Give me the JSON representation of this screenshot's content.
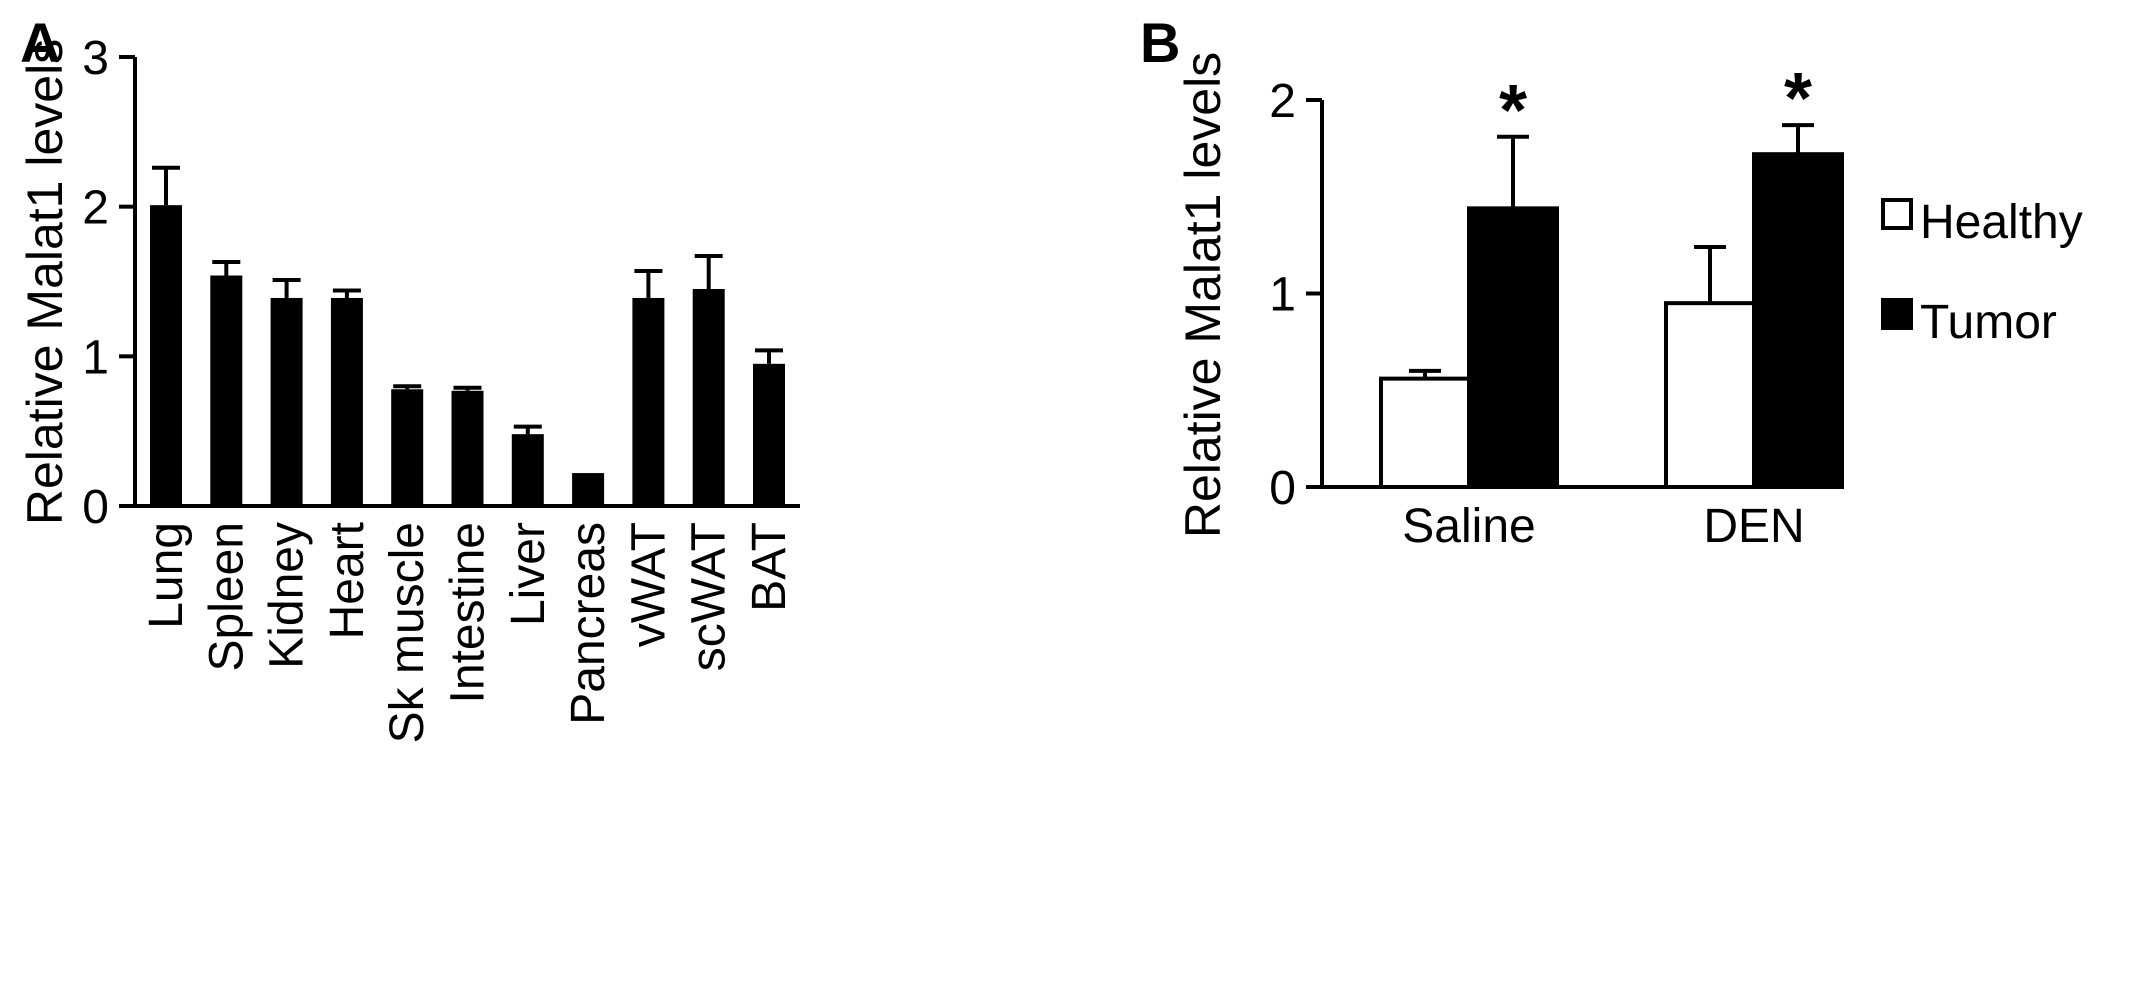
{
  "chart_data": [
    {
      "panel": "A",
      "type": "bar",
      "ylabel": "Relative Malat1 levels",
      "ylim": [
        0,
        3
      ],
      "yticks": [
        "0",
        "1",
        "2",
        "3"
      ],
      "categories": [
        "Lung",
        "Spleen",
        "Kidney",
        "Heart",
        "Sk muscle",
        "Intestine",
        "Liver",
        "Pancreas",
        "vWAT",
        "scWAT",
        "BAT"
      ],
      "values": [
        2.01,
        1.54,
        1.39,
        1.39,
        0.78,
        0.77,
        0.48,
        0.22,
        1.39,
        1.45,
        0.95
      ],
      "errors": [
        0.25,
        0.09,
        0.12,
        0.05,
        0.02,
        0.02,
        0.05,
        0.0,
        0.18,
        0.22,
        0.09
      ],
      "colors": {
        "bar": "#000000"
      }
    },
    {
      "panel": "B",
      "type": "bar",
      "ylabel": "Relative Malat1 levels",
      "ylim": [
        0,
        2
      ],
      "yticks": [
        "0",
        "1",
        "2"
      ],
      "categories": [
        "Saline",
        "DEN"
      ],
      "series": [
        {
          "name": "Healthy",
          "values": [
            0.56,
            0.95
          ],
          "errors": [
            0.04,
            0.29
          ],
          "color": "#ffffff"
        },
        {
          "name": "Tumor",
          "values": [
            1.44,
            1.72
          ],
          "errors": [
            0.37,
            0.15
          ],
          "color": "#000000"
        }
      ],
      "significance": [
        "*",
        "*"
      ],
      "legend": "right"
    }
  ]
}
